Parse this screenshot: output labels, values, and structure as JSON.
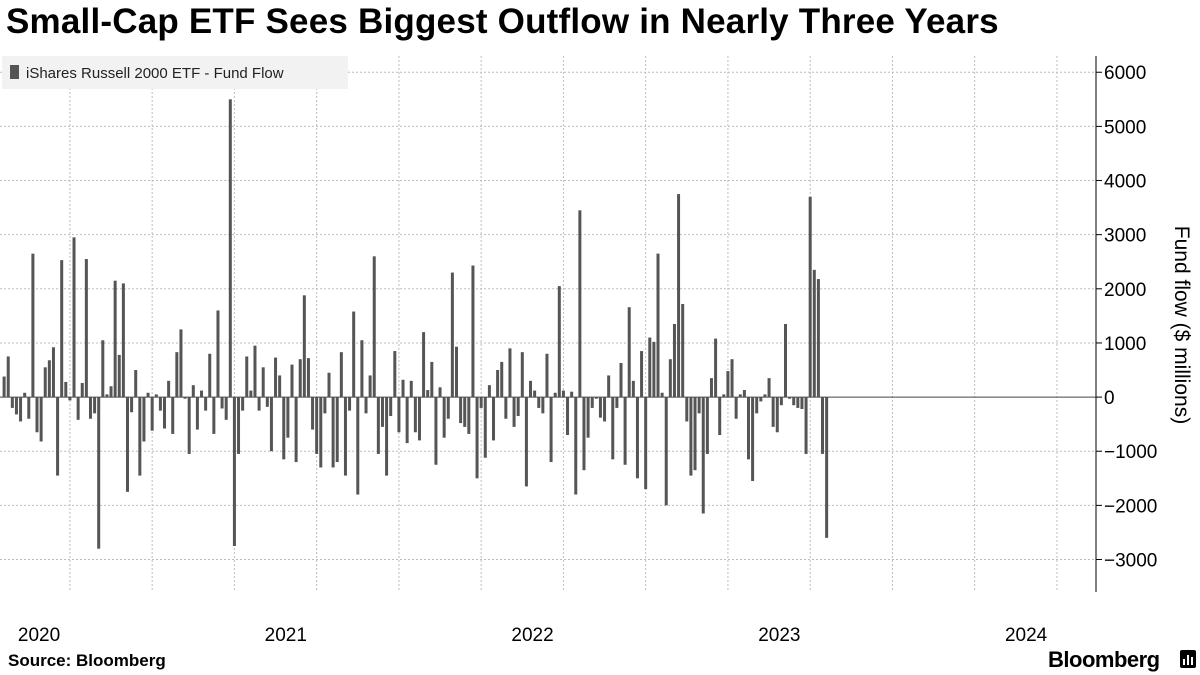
{
  "header": {
    "title": "Small-Cap ETF Sees Biggest Outflow in Nearly Three Years"
  },
  "footer": {
    "source": "Source:  Bloomberg",
    "brand": "Bloomberg"
  },
  "colors": {
    "bar": "#555555",
    "grid": "#bdbdbd",
    "legend_bg": "#f2f2f2"
  },
  "chart_data": {
    "type": "bar",
    "legend": "iShares Russell 2000 ETF - Fund Flow",
    "legend_position": "top-left",
    "ylabel": "Fund flow ($ millions)",
    "y_axis_side": "right",
    "ylim": [
      -3600,
      6300
    ],
    "yticks": [
      6000,
      5000,
      4000,
      3000,
      2000,
      1000,
      0,
      -1000,
      -2000,
      -3000
    ],
    "ytick_labels": [
      "6000",
      "5000",
      "4000",
      "3000",
      "2000",
      "1000",
      "0",
      "−1000",
      "−2000",
      "−3000"
    ],
    "grid": true,
    "x_labels": [
      "2020",
      "2021",
      "2022",
      "2023",
      "2024"
    ],
    "x_label_months": [
      0.5,
      12.5,
      24.5,
      36.5,
      48.5
    ],
    "x_grid_months": [
      2,
      6,
      10,
      14,
      18,
      22,
      26,
      30,
      34,
      38,
      42,
      46,
      50
    ],
    "x_range_months": [
      -1.4,
      51.9
    ],
    "series": [
      {
        "name": "iShares Russell 2000 ETF - Fund Flow",
        "points": [
          [
            -1.2,
            380
          ],
          [
            -1.0,
            750
          ],
          [
            -0.8,
            -200
          ],
          [
            -0.6,
            -320
          ],
          [
            -0.4,
            -450
          ],
          [
            -0.2,
            80
          ],
          [
            0.0,
            -400
          ],
          [
            0.2,
            2650
          ],
          [
            0.4,
            -650
          ],
          [
            0.6,
            -820
          ],
          [
            0.8,
            550
          ],
          [
            1.0,
            680
          ],
          [
            1.2,
            920
          ],
          [
            1.4,
            -1450
          ],
          [
            1.6,
            2530
          ],
          [
            1.8,
            280
          ],
          [
            2.0,
            -60
          ],
          [
            2.2,
            2950
          ],
          [
            2.4,
            -420
          ],
          [
            2.6,
            260
          ],
          [
            2.8,
            2550
          ],
          [
            3.0,
            -400
          ],
          [
            3.2,
            -300
          ],
          [
            3.4,
            -2800
          ],
          [
            3.6,
            1050
          ],
          [
            3.8,
            50
          ],
          [
            4.0,
            200
          ],
          [
            4.2,
            2150
          ],
          [
            4.4,
            780
          ],
          [
            4.6,
            2100
          ],
          [
            4.8,
            -1750
          ],
          [
            5.0,
            -280
          ],
          [
            5.2,
            500
          ],
          [
            5.4,
            -1450
          ],
          [
            5.6,
            -820
          ],
          [
            5.8,
            80
          ],
          [
            6.0,
            -620
          ],
          [
            6.2,
            50
          ],
          [
            6.4,
            -250
          ],
          [
            6.6,
            -580
          ],
          [
            6.8,
            300
          ],
          [
            7.0,
            -680
          ],
          [
            7.2,
            830
          ],
          [
            7.4,
            1250
          ],
          [
            7.6,
            -30
          ],
          [
            7.8,
            -1050
          ],
          [
            8.0,
            220
          ],
          [
            8.2,
            -600
          ],
          [
            8.4,
            120
          ],
          [
            8.6,
            -250
          ],
          [
            8.8,
            800
          ],
          [
            9.0,
            -680
          ],
          [
            9.2,
            1600
          ],
          [
            9.4,
            -210
          ],
          [
            9.6,
            -420
          ],
          [
            9.8,
            5500
          ],
          [
            10.0,
            -2750
          ],
          [
            10.2,
            -1050
          ],
          [
            10.4,
            -250
          ],
          [
            10.6,
            750
          ],
          [
            10.8,
            120
          ],
          [
            11.0,
            950
          ],
          [
            11.2,
            -250
          ],
          [
            11.4,
            550
          ],
          [
            11.6,
            -180
          ],
          [
            11.8,
            -1000
          ],
          [
            12.0,
            730
          ],
          [
            12.2,
            400
          ],
          [
            12.4,
            -1150
          ],
          [
            12.6,
            -750
          ],
          [
            12.8,
            600
          ],
          [
            13.0,
            -1200
          ],
          [
            13.2,
            700
          ],
          [
            13.4,
            1880
          ],
          [
            13.6,
            720
          ],
          [
            13.8,
            -600
          ],
          [
            14.0,
            -1050
          ],
          [
            14.2,
            -1300
          ],
          [
            14.4,
            -300
          ],
          [
            14.6,
            450
          ],
          [
            14.8,
            -1300
          ],
          [
            15.0,
            -1200
          ],
          [
            15.2,
            830
          ],
          [
            15.4,
            -1450
          ],
          [
            15.6,
            -250
          ],
          [
            15.8,
            1580
          ],
          [
            16.0,
            -1800
          ],
          [
            16.2,
            1050
          ],
          [
            16.4,
            -300
          ],
          [
            16.6,
            400
          ],
          [
            16.8,
            2600
          ],
          [
            17.0,
            -1050
          ],
          [
            17.2,
            -550
          ],
          [
            17.4,
            -1450
          ],
          [
            17.6,
            -350
          ],
          [
            17.8,
            850
          ],
          [
            18.0,
            -650
          ],
          [
            18.2,
            320
          ],
          [
            18.4,
            -850
          ],
          [
            18.6,
            300
          ],
          [
            18.8,
            -650
          ],
          [
            19.0,
            -800
          ],
          [
            19.2,
            1200
          ],
          [
            19.4,
            130
          ],
          [
            19.6,
            650
          ],
          [
            19.8,
            -1250
          ],
          [
            20.0,
            180
          ],
          [
            20.2,
            -750
          ],
          [
            20.4,
            -400
          ],
          [
            20.6,
            2300
          ],
          [
            20.8,
            930
          ],
          [
            21.0,
            -480
          ],
          [
            21.2,
            -550
          ],
          [
            21.4,
            -680
          ],
          [
            21.6,
            2430
          ],
          [
            21.8,
            -1500
          ],
          [
            22.0,
            -200
          ],
          [
            22.2,
            -1120
          ],
          [
            22.4,
            220
          ],
          [
            22.6,
            -800
          ],
          [
            22.8,
            500
          ],
          [
            23.0,
            650
          ],
          [
            23.2,
            -400
          ],
          [
            23.4,
            900
          ],
          [
            23.6,
            -550
          ],
          [
            23.8,
            -350
          ],
          [
            24.0,
            830
          ],
          [
            24.2,
            -1650
          ],
          [
            24.4,
            300
          ],
          [
            24.6,
            120
          ],
          [
            24.8,
            -200
          ],
          [
            25.0,
            -300
          ],
          [
            25.2,
            800
          ],
          [
            25.4,
            -1200
          ],
          [
            25.6,
            80
          ],
          [
            25.8,
            2050
          ],
          [
            26.0,
            120
          ],
          [
            26.2,
            -700
          ],
          [
            26.4,
            100
          ],
          [
            26.6,
            -1800
          ],
          [
            26.8,
            3450
          ],
          [
            27.0,
            -1350
          ],
          [
            27.2,
            -750
          ],
          [
            27.4,
            -200
          ],
          [
            27.6,
            -30
          ],
          [
            27.8,
            -380
          ],
          [
            28.0,
            -450
          ],
          [
            28.2,
            400
          ],
          [
            28.4,
            -1150
          ],
          [
            28.6,
            -200
          ],
          [
            28.8,
            630
          ],
          [
            29.0,
            -1250
          ],
          [
            29.2,
            1660
          ],
          [
            29.4,
            300
          ],
          [
            29.6,
            -1500
          ],
          [
            29.8,
            850
          ],
          [
            30.0,
            -1700
          ],
          [
            30.2,
            1100
          ],
          [
            30.4,
            1020
          ],
          [
            30.6,
            2650
          ],
          [
            30.8,
            80
          ],
          [
            31.0,
            -2000
          ],
          [
            31.2,
            700
          ],
          [
            31.4,
            1350
          ],
          [
            31.6,
            3750
          ],
          [
            31.8,
            1720
          ],
          [
            32.0,
            -450
          ],
          [
            32.2,
            -1450
          ],
          [
            32.4,
            -1350
          ],
          [
            32.6,
            -300
          ],
          [
            32.8,
            -2150
          ],
          [
            33.0,
            -1050
          ],
          [
            33.2,
            350
          ],
          [
            33.4,
            1080
          ],
          [
            33.6,
            -700
          ],
          [
            33.8,
            50
          ],
          [
            34.0,
            480
          ],
          [
            34.2,
            700
          ],
          [
            34.4,
            -400
          ],
          [
            34.6,
            50
          ],
          [
            34.8,
            130
          ],
          [
            35.0,
            -1150
          ],
          [
            35.2,
            -1550
          ],
          [
            35.4,
            -300
          ],
          [
            35.6,
            -80
          ],
          [
            35.8,
            50
          ],
          [
            36.0,
            350
          ],
          [
            36.2,
            -550
          ],
          [
            36.4,
            -650
          ],
          [
            36.6,
            -150
          ],
          [
            36.8,
            1350
          ],
          [
            37.0,
            -30
          ],
          [
            37.2,
            -150
          ],
          [
            37.4,
            -200
          ],
          [
            37.6,
            -220
          ],
          [
            37.8,
            -1050
          ],
          [
            38.0,
            3700
          ],
          [
            38.2,
            2350
          ],
          [
            38.4,
            2180
          ],
          [
            38.6,
            -1050
          ],
          [
            38.8,
            -2600
          ]
        ]
      }
    ]
  }
}
